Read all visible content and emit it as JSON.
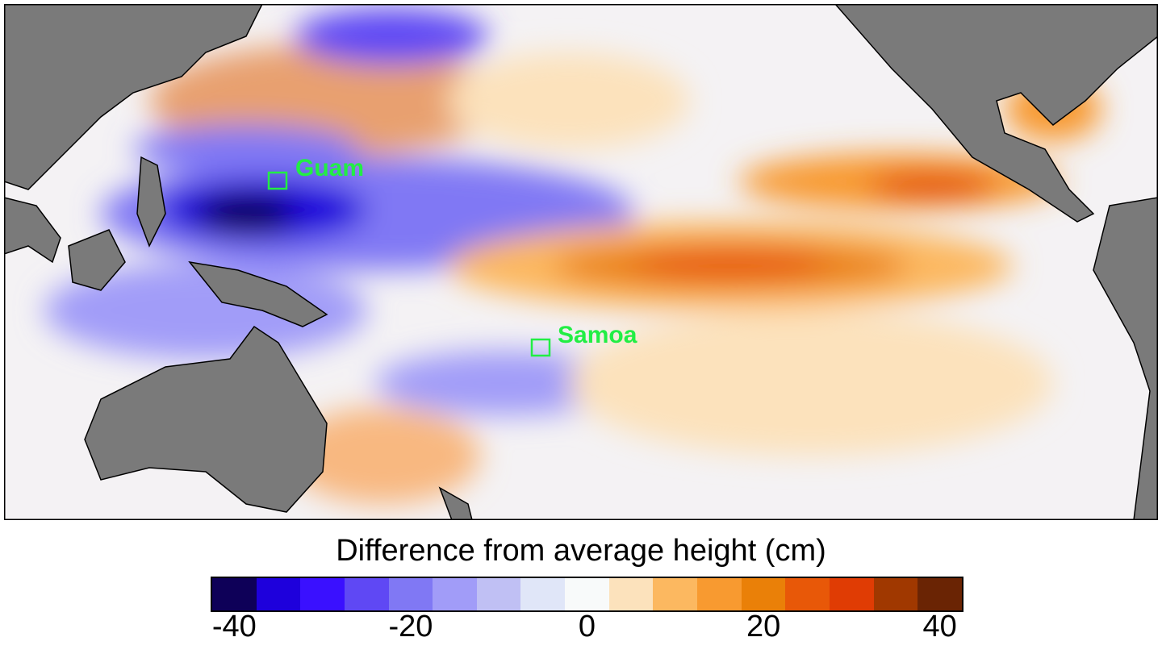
{
  "map": {
    "labels": [
      {
        "name": "guam",
        "text": "Guam"
      },
      {
        "name": "samoa",
        "text": "Samoa"
      }
    ],
    "land_color": "#7a7a7a",
    "marker_color": "#22ee44"
  },
  "colorbar": {
    "title": "Difference from average height (cm)",
    "colors": [
      "#0e0058",
      "#1e00dc",
      "#3a10ff",
      "#5f48f4",
      "#8078f4",
      "#a19cf8",
      "#c0c0f4",
      "#e0e6f8",
      "#f8fafa",
      "#fce2bc",
      "#fcb860",
      "#f89a30",
      "#ea8008",
      "#e85808",
      "#e03c04",
      "#a03800",
      "#6a2404"
    ],
    "ticks": [
      {
        "label": "-40",
        "value": -40
      },
      {
        "label": "-20",
        "value": -20
      },
      {
        "label": "0",
        "value": 0
      },
      {
        "label": "20",
        "value": 20
      },
      {
        "label": "40",
        "value": 40
      }
    ],
    "range": [
      -42.5,
      42.5
    ],
    "unit": "cm"
  }
}
